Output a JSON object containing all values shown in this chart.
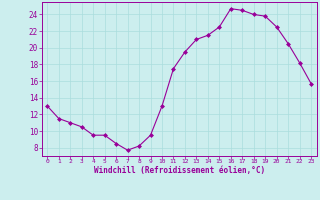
{
  "x": [
    0,
    1,
    2,
    3,
    4,
    5,
    6,
    7,
    8,
    9,
    10,
    11,
    12,
    13,
    14,
    15,
    16,
    17,
    18,
    19,
    20,
    21,
    22,
    23
  ],
  "y": [
    13,
    11.5,
    11,
    10.5,
    9.5,
    9.5,
    8.5,
    7.7,
    8.2,
    9.5,
    13,
    17.5,
    19.5,
    21,
    21.5,
    22.5,
    24.7,
    24.5,
    24,
    23.8,
    22.5,
    20.5,
    18.2,
    15.7
  ],
  "xlabel": "Windchill (Refroidissement éolien,°C)",
  "line_color": "#990099",
  "marker_color": "#990099",
  "bg_color": "#cceeee",
  "grid_color": "#aadddd",
  "tick_label_color": "#990099",
  "xlabel_color": "#990099",
  "xlim": [
    -0.5,
    23.5
  ],
  "ylim": [
    7.0,
    25.5
  ],
  "yticks": [
    8,
    10,
    12,
    14,
    16,
    18,
    20,
    22,
    24
  ],
  "xticks": [
    0,
    1,
    2,
    3,
    4,
    5,
    6,
    7,
    8,
    9,
    10,
    11,
    12,
    13,
    14,
    15,
    16,
    17,
    18,
    19,
    20,
    21,
    22,
    23
  ],
  "xtick_labels": [
    "0",
    "1",
    "2",
    "3",
    "4",
    "5",
    "6",
    "7",
    "8",
    "9",
    "10",
    "11",
    "12",
    "13",
    "14",
    "15",
    "16",
    "17",
    "18",
    "19",
    "20",
    "21",
    "22",
    "23"
  ]
}
